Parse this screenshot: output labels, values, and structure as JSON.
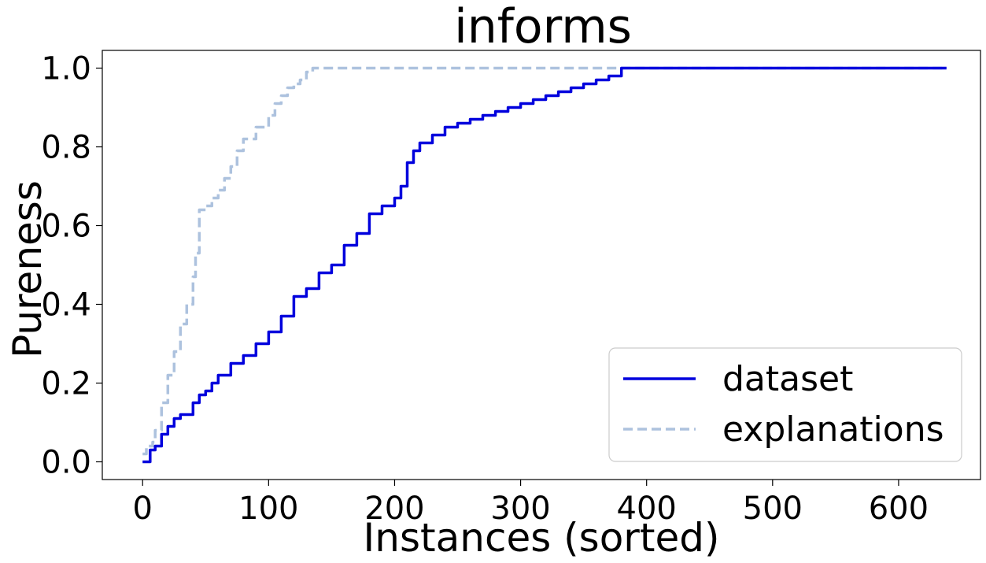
{
  "chart_data": {
    "type": "line",
    "title": "informs",
    "xlabel": "Instances (sorted)",
    "ylabel": "Pureness",
    "xlim": [
      -32,
      665
    ],
    "ylim": [
      -0.045,
      1.045
    ],
    "xticks": [
      0,
      100,
      200,
      300,
      400,
      500,
      600
    ],
    "xtick_labels": [
      "0",
      "100",
      "200",
      "300",
      "400",
      "500",
      "600"
    ],
    "yticks": [
      0.0,
      0.2,
      0.4,
      0.6,
      0.8,
      1.0
    ],
    "ytick_labels": [
      "0.0",
      "0.2",
      "0.4",
      "0.6",
      "0.8",
      "1.0"
    ],
    "grid": false,
    "legend_position": "lower-right",
    "series": [
      {
        "name": "dataset",
        "color": "#0000dd",
        "linestyle": "solid",
        "x": [
          0,
          5,
          6,
          10,
          15,
          20,
          25,
          30,
          40,
          45,
          50,
          55,
          60,
          70,
          80,
          90,
          100,
          110,
          120,
          130,
          140,
          150,
          160,
          170,
          180,
          190,
          200,
          205,
          210,
          215,
          220,
          230,
          240,
          250,
          260,
          270,
          280,
          290,
          300,
          310,
          320,
          330,
          340,
          350,
          360,
          370,
          380,
          385,
          400,
          500,
          600,
          638
        ],
        "y": [
          0.0,
          0.0,
          0.03,
          0.04,
          0.07,
          0.09,
          0.11,
          0.12,
          0.15,
          0.17,
          0.18,
          0.2,
          0.22,
          0.25,
          0.27,
          0.3,
          0.33,
          0.37,
          0.42,
          0.44,
          0.48,
          0.5,
          0.55,
          0.58,
          0.63,
          0.65,
          0.67,
          0.7,
          0.76,
          0.79,
          0.81,
          0.83,
          0.85,
          0.86,
          0.87,
          0.88,
          0.89,
          0.9,
          0.91,
          0.92,
          0.93,
          0.94,
          0.95,
          0.96,
          0.97,
          0.98,
          1.0,
          1.0,
          1.0,
          1.0,
          1.0,
          1.0
        ]
      },
      {
        "name": "explanations",
        "color": "#adc2de",
        "linestyle": "dashed",
        "x": [
          0,
          3,
          8,
          10,
          15,
          20,
          25,
          30,
          35,
          40,
          42,
          45,
          50,
          55,
          60,
          65,
          70,
          75,
          80,
          90,
          100,
          105,
          110,
          115,
          120,
          125,
          130,
          135,
          200,
          300,
          400,
          500,
          600,
          638
        ],
        "y": [
          0.02,
          0.04,
          0.05,
          0.08,
          0.15,
          0.22,
          0.28,
          0.35,
          0.4,
          0.47,
          0.53,
          0.64,
          0.65,
          0.67,
          0.69,
          0.72,
          0.75,
          0.79,
          0.82,
          0.85,
          0.88,
          0.91,
          0.93,
          0.95,
          0.96,
          0.97,
          0.99,
          1.0,
          1.0,
          1.0,
          1.0,
          1.0,
          1.0,
          1.0
        ]
      }
    ]
  }
}
